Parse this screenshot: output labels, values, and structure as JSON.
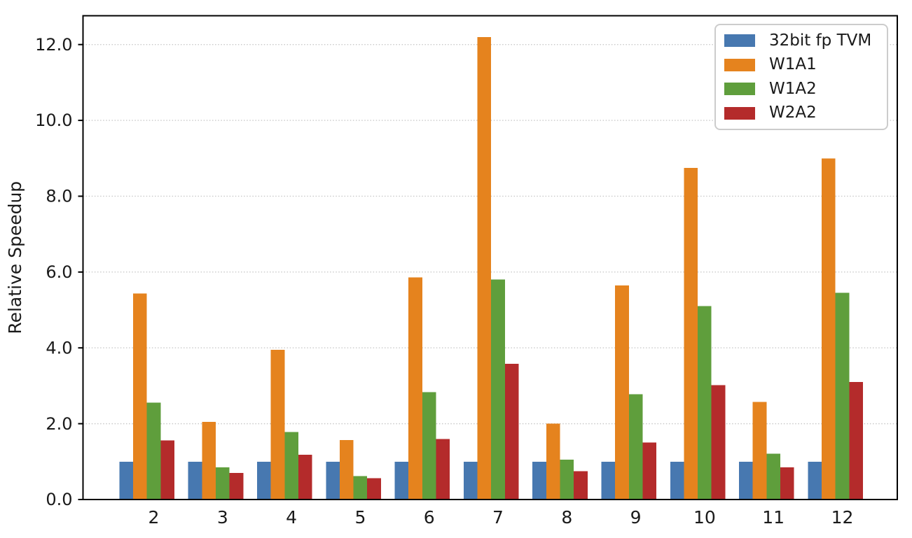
{
  "chart_data": {
    "type": "bar",
    "title": "",
    "xlabel": "",
    "ylabel": "Relative Speedup",
    "categories": [
      "2",
      "3",
      "4",
      "5",
      "6",
      "7",
      "8",
      "9",
      "10",
      "11",
      "12"
    ],
    "series": [
      {
        "name": "32bit fp TVM",
        "color": "#4778B0",
        "values": [
          1.0,
          1.0,
          1.0,
          1.0,
          1.0,
          1.0,
          1.0,
          1.0,
          1.0,
          1.0,
          1.0
        ]
      },
      {
        "name": "W1A1",
        "color": "#E5831E",
        "values": [
          5.43,
          2.05,
          3.95,
          1.57,
          5.86,
          12.2,
          2.0,
          5.65,
          8.75,
          2.57,
          9.0
        ]
      },
      {
        "name": "W1A2",
        "color": "#5F9E3C",
        "values": [
          2.56,
          0.85,
          1.78,
          0.62,
          2.83,
          5.8,
          1.05,
          2.78,
          5.1,
          1.21,
          5.45
        ]
      },
      {
        "name": "W2A2",
        "color": "#B42B2B",
        "values": [
          1.56,
          0.7,
          1.18,
          0.56,
          1.6,
          3.58,
          0.75,
          1.5,
          3.02,
          0.85,
          3.1
        ]
      }
    ],
    "ylim": [
      0,
      12.76
    ],
    "ytick_values": [
      0,
      2,
      4,
      6,
      8,
      10,
      12
    ],
    "ytick_labels": [
      "0.0",
      "2.0",
      "4.0",
      "6.0",
      "8.0",
      "10.0",
      "12.0"
    ],
    "grid": {
      "axis": "y",
      "style": "dotted",
      "color": "#C9C9C9"
    },
    "legend": {
      "position": "upper-right",
      "border_color": "#CCCCCC",
      "background": "#FFFFFF"
    },
    "axis_color": "#000000",
    "text_color": "#1A1A1A",
    "background": "#FFFFFF"
  }
}
